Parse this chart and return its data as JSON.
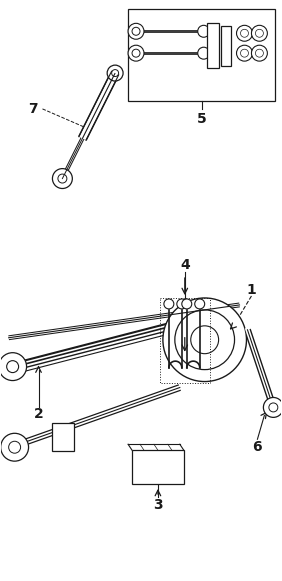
{
  "background_color": "#ffffff",
  "line_color": "#1a1a1a",
  "figure_width": 2.82,
  "figure_height": 5.81,
  "dpi": 100,
  "label_fontsize": 10,
  "label_fontweight": "bold"
}
